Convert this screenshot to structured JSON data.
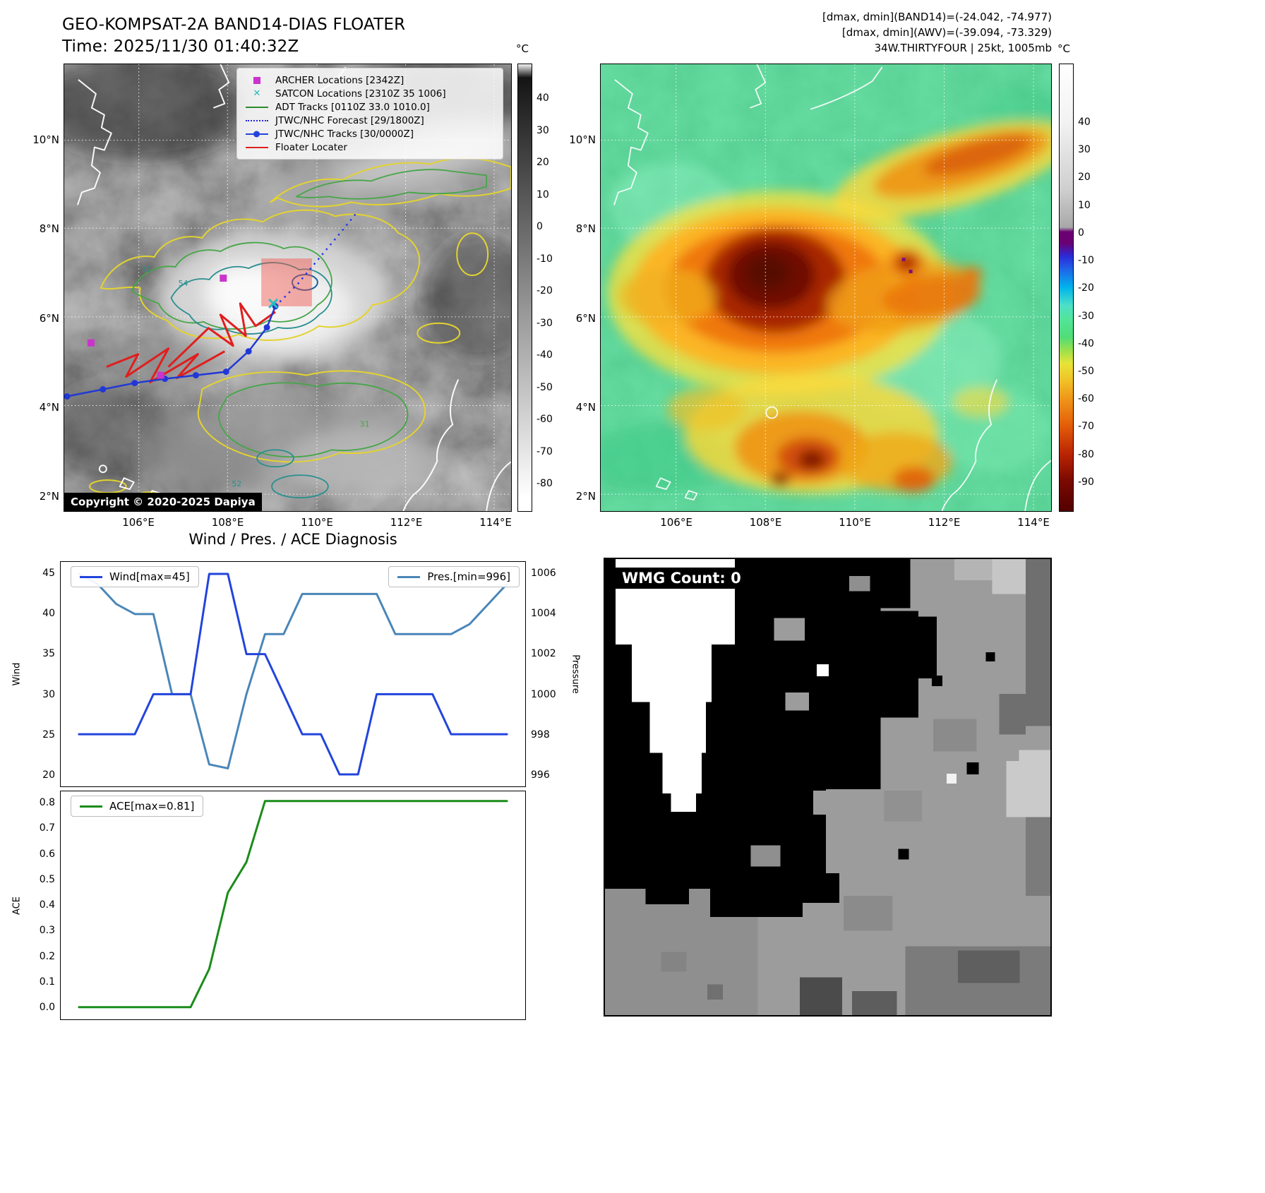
{
  "header": {
    "title": "GEO-KOMPSAT-2A BAND14-DIAS FLOATER",
    "time_line": "Time: 2025/11/30 01:40:32Z",
    "info_lines": [
      "[dmax, dmin](BAND14)=(-24.042, -74.977)",
      "[dmax, dmin](AWV)=(-39.094, -73.329)",
      "34W.THIRTYFOUR | 25kt, 1005mb"
    ]
  },
  "band14_panel": {
    "legend_items": [
      {
        "label": "ARCHER Locations [2342Z]",
        "marker": "m-square"
      },
      {
        "label": "SATCON Locations [2310Z 35 1006]",
        "marker": "m-x"
      },
      {
        "label": "ADT Tracks [0110Z 33.0 1010.0]",
        "marker": "m-green"
      },
      {
        "label": "JTWC/NHC Forecast [29/1800Z]",
        "marker": "m-bluedot"
      },
      {
        "label": "JTWC/NHC Tracks [30/0000Z]",
        "marker": "m-blueline"
      },
      {
        "label": "Floater Locater",
        "marker": "m-red"
      }
    ],
    "copyright": "Copyright © 2020-2025 Dapiya",
    "contour_labels": [
      "31",
      "54",
      "31",
      "52"
    ],
    "lat_ticks": [
      "10°N",
      "8°N",
      "6°N",
      "4°N",
      "2°N"
    ],
    "lon_ticks": [
      "106°E",
      "108°E",
      "110°E",
      "112°E",
      "114°E"
    ],
    "colorbar_unit": "°C",
    "colorbar_ticks": [
      "40",
      "30",
      "20",
      "10",
      "0",
      "-10",
      "-20",
      "-30",
      "-40",
      "-50",
      "-60",
      "-70",
      "-80"
    ]
  },
  "awv_panel": {
    "lat_ticks": [
      "10°N",
      "8°N",
      "6°N",
      "4°N",
      "2°N"
    ],
    "lon_ticks": [
      "106°E",
      "108°E",
      "110°E",
      "112°E",
      "114°E"
    ],
    "colorbar_unit": "°C",
    "colorbar_ticks": [
      "40",
      "30",
      "20",
      "10",
      "0",
      "-10",
      "-20",
      "-30",
      "-40",
      "-50",
      "-60",
      "-70",
      "-80",
      "-90"
    ]
  },
  "diagnosis": {
    "title": "Wind / Pres. / ACE Diagnosis",
    "wind_legend": "Wind[max=45]",
    "pres_legend": "Pres.[min=996]",
    "ace_legend": "ACE[max=0.81]",
    "wind_axis_label": "Wind",
    "pres_axis_label": "Pressure",
    "ace_axis_label": "ACE",
    "wind_ticks": [
      "45",
      "40",
      "35",
      "30",
      "25",
      "20"
    ],
    "pres_ticks": [
      "1006",
      "1004",
      "1002",
      "1000",
      "998",
      "996"
    ],
    "ace_ticks": [
      "0.8",
      "0.7",
      "0.6",
      "0.5",
      "0.4",
      "0.3",
      "0.2",
      "0.1",
      "0.0"
    ]
  },
  "wmg_panel": {
    "count_label": "WMG Count: 0"
  },
  "chart_data": [
    {
      "type": "line",
      "title": "Wind / Pres. / ACE Diagnosis",
      "series": [
        {
          "name": "Wind[max=45]",
          "axis": "left",
          "color": "#2244dd",
          "values": [
            25,
            25,
            25,
            25,
            30,
            30,
            30,
            45,
            45,
            35,
            35,
            30,
            25,
            25,
            20,
            20,
            30,
            30,
            30,
            30,
            25,
            25,
            25,
            25
          ]
        },
        {
          "name": "Pres.[min=996]",
          "axis": "right",
          "color": "#4a86b8",
          "values": [
            1006,
            1005.5,
            1004.5,
            1004,
            1004,
            1000,
            1000,
            996.5,
            996.3,
            1000,
            1003,
            1003,
            1005,
            1005,
            1005,
            1005,
            1005,
            1003,
            1003,
            1003,
            1003,
            1003.5,
            1004.5,
            1005.5
          ]
        }
      ],
      "left_ylim": [
        20,
        45
      ],
      "right_ylim": [
        996,
        1006
      ],
      "left_label": "Wind",
      "right_label": "Pressure",
      "legend_position": "top",
      "grid": false
    },
    {
      "type": "line",
      "series": [
        {
          "name": "ACE[max=0.81]",
          "color": "#1a8c1a",
          "values": [
            0,
            0,
            0,
            0,
            0,
            0,
            0,
            0.15,
            0.45,
            0.57,
            0.81,
            0.81,
            0.81,
            0.81,
            0.81,
            0.81,
            0.81,
            0.81,
            0.81,
            0.81,
            0.81,
            0.81,
            0.81,
            0.81
          ]
        }
      ],
      "ylim": [
        0,
        0.8
      ],
      "left_label": "ACE",
      "legend_position": "top-left",
      "grid": false
    }
  ]
}
